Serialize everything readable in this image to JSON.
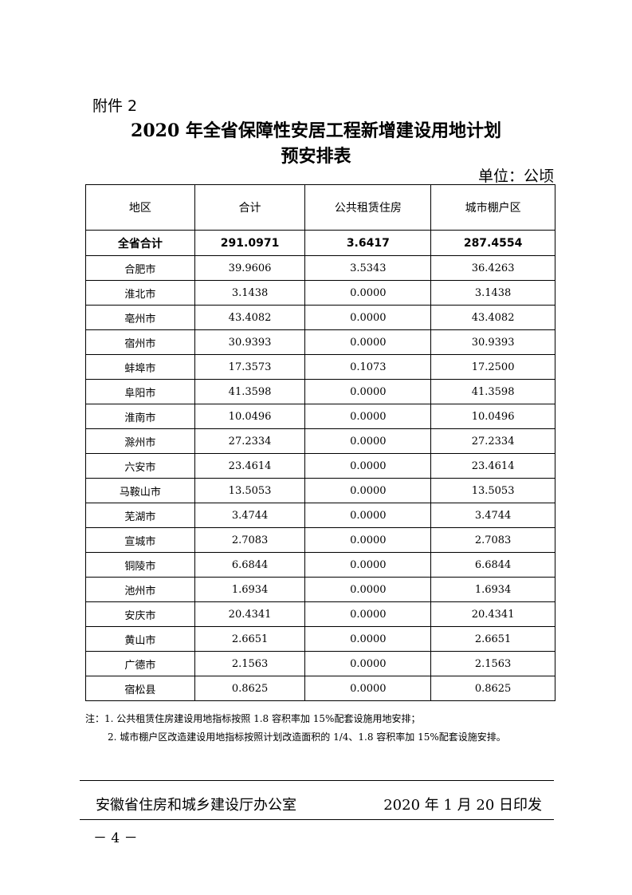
{
  "attachment": "附件 2",
  "title_line1": "2020 年全省保障性安居工程新增建设用地计划",
  "title_line2": "预安排表",
  "unit": "单位：公顷",
  "table": {
    "headers": [
      "地区",
      "合计",
      "公共租赁住房",
      "城市棚户区"
    ],
    "total": [
      "全省合计",
      "291.0971",
      "3.6417",
      "287.4554"
    ],
    "rows": [
      [
        "合肥市",
        "39.9606",
        "3.5343",
        "36.4263"
      ],
      [
        "淮北市",
        "3.1438",
        "0.0000",
        "3.1438"
      ],
      [
        "亳州市",
        "43.4082",
        "0.0000",
        "43.4082"
      ],
      [
        "宿州市",
        "30.9393",
        "0.0000",
        "30.9393"
      ],
      [
        "蚌埠市",
        "17.3573",
        "0.1073",
        "17.2500"
      ],
      [
        "阜阳市",
        "41.3598",
        "0.0000",
        "41.3598"
      ],
      [
        "淮南市",
        "10.0496",
        "0.0000",
        "10.0496"
      ],
      [
        "滁州市",
        "27.2334",
        "0.0000",
        "27.2334"
      ],
      [
        "六安市",
        "23.4614",
        "0.0000",
        "23.4614"
      ],
      [
        "马鞍山市",
        "13.5053",
        "0.0000",
        "13.5053"
      ],
      [
        "芜湖市",
        "3.4744",
        "0.0000",
        "3.4744"
      ],
      [
        "宣城市",
        "2.7083",
        "0.0000",
        "2.7083"
      ],
      [
        "铜陵市",
        "6.6844",
        "0.0000",
        "6.6844"
      ],
      [
        "池州市",
        "1.6934",
        "0.0000",
        "1.6934"
      ],
      [
        "安庆市",
        "20.4341",
        "0.0000",
        "20.4341"
      ],
      [
        "黄山市",
        "2.6651",
        "0.0000",
        "2.6651"
      ],
      [
        "广德市",
        "2.1563",
        "0.0000",
        "2.1563"
      ],
      [
        "宿松县",
        "0.8625",
        "0.0000",
        "0.8625"
      ]
    ]
  },
  "notes": [
    "注：1. 公共租赁住房建设用地指标按照 1.8 容积率加 15%配套设施用地安排；",
    "2. 城市棚户区改造建设用地指标按照计划改造面积的 1/4、1.8 容积率加 15%配套设施安排。"
  ],
  "issuer": "安徽省住房和城乡建设厅办公室",
  "issue_date": "2020 年 1 月 20 日印发",
  "page_number": "－ 4 －"
}
